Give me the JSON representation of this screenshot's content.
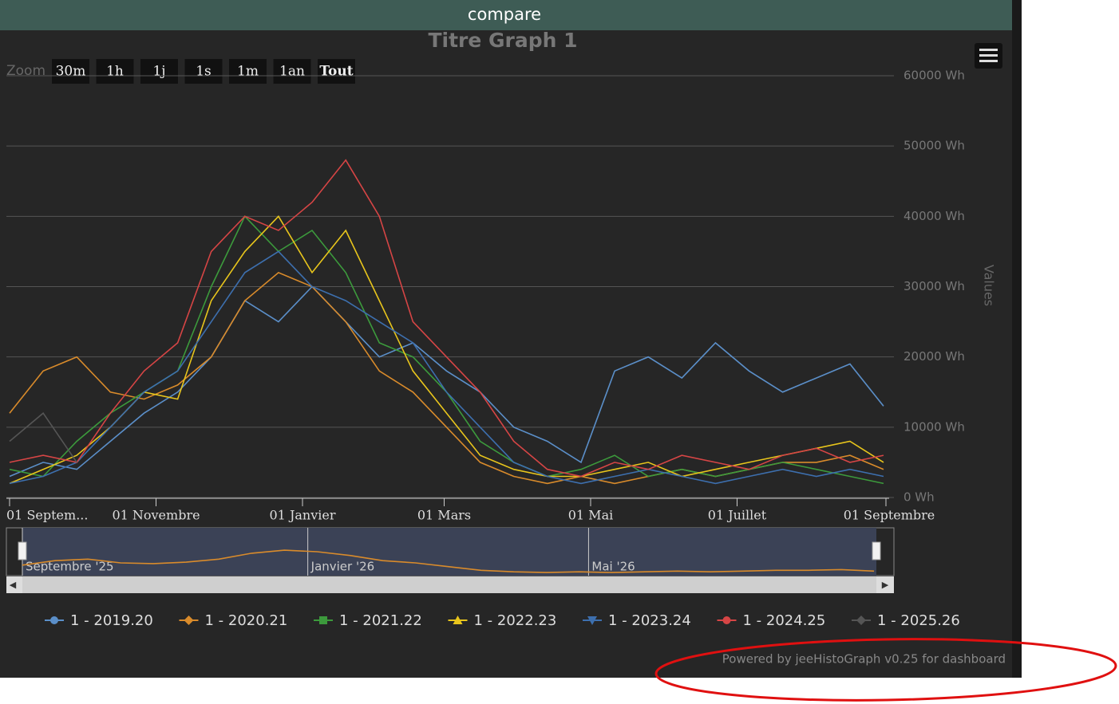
{
  "header": {
    "title": "compare"
  },
  "chart_data": {
    "type": "line",
    "title": "Titre Graph 1",
    "range_selector": {
      "label": "Zoom",
      "buttons": [
        "30m",
        "1h",
        "1j",
        "1s",
        "1m",
        "1an",
        "Tout"
      ],
      "selected": 6
    },
    "y_label": "Values",
    "x": [
      "2025-09-01",
      "2025-09-15",
      "2025-09-29",
      "2025-10-13",
      "2025-10-27",
      "2025-11-10",
      "2025-11-24",
      "2025-12-08",
      "2025-12-22",
      "2026-01-05",
      "2026-01-19",
      "2026-02-02",
      "2026-02-16",
      "2026-03-02",
      "2026-03-16",
      "2026-03-30",
      "2026-04-13",
      "2026-04-27",
      "2026-05-11",
      "2026-05-25",
      "2026-06-08",
      "2026-06-22",
      "2026-07-06",
      "2026-07-20",
      "2026-08-03",
      "2026-08-17",
      "2026-08-31"
    ],
    "xlim": [
      "2025-09-01",
      "2026-09-01"
    ],
    "xticks": [
      {
        "value": "2025-09-01",
        "label": "01 Septem..."
      },
      {
        "value": "2025-11-01",
        "label": "01 Novembre"
      },
      {
        "value": "2026-01-01",
        "label": "01 Janvier"
      },
      {
        "value": "2026-03-01",
        "label": "01 Mars"
      },
      {
        "value": "2026-05-01",
        "label": "01 Mai"
      },
      {
        "value": "2026-07-01",
        "label": "01 Juillet"
      },
      {
        "value": "2026-09-01",
        "label": "01 Septembre"
      }
    ],
    "ylim": [
      0,
      60000
    ],
    "yticks": [
      {
        "value": 0,
        "label": "0 Wh"
      },
      {
        "value": 10000,
        "label": "10000 Wh"
      },
      {
        "value": 20000,
        "label": "20000 Wh"
      },
      {
        "value": 30000,
        "label": "30000 Wh"
      },
      {
        "value": 40000,
        "label": "40000 Wh"
      },
      {
        "value": 50000,
        "label": "50000 Wh"
      },
      {
        "value": 60000,
        "label": "60000 Wh"
      }
    ],
    "grid": true,
    "series": [
      {
        "name": "1 - 2019.20",
        "color": "#5b8fc9",
        "marker": "circle",
        "values": [
          3000,
          5000,
          4000,
          8000,
          12000,
          15000,
          20000,
          28000,
          25000,
          30000,
          25000,
          20000,
          22000,
          18000,
          15000,
          10000,
          8000,
          5000,
          18000,
          20000,
          17000,
          22000,
          18000,
          15000,
          17000,
          19000,
          13000
        ]
      },
      {
        "name": "1 - 2020.21",
        "color": "#d98b2b",
        "marker": "diamond",
        "values": [
          12000,
          18000,
          20000,
          15000,
          14000,
          16000,
          20000,
          28000,
          32000,
          30000,
          25000,
          18000,
          15000,
          10000,
          5000,
          3000,
          2000,
          3000,
          2000,
          3000,
          4000,
          3000,
          4000,
          5000,
          5000,
          6000,
          4000
        ]
      },
      {
        "name": "1 - 2021.22",
        "color": "#3c9a3c",
        "marker": "square",
        "values": [
          4000,
          3000,
          8000,
          12000,
          15000,
          18000,
          30000,
          40000,
          35000,
          38000,
          32000,
          22000,
          20000,
          15000,
          8000,
          5000,
          3000,
          4000,
          6000,
          3000,
          4000,
          3000,
          4000,
          5000,
          4000,
          3000,
          2000
        ]
      },
      {
        "name": "1 - 2022.23",
        "color": "#e8c51c",
        "marker": "triangle",
        "values": [
          2000,
          4000,
          6000,
          10000,
          15000,
          14000,
          28000,
          35000,
          40000,
          32000,
          38000,
          28000,
          18000,
          12000,
          6000,
          4000,
          3000,
          3000,
          4000,
          5000,
          3000,
          4000,
          5000,
          6000,
          7000,
          8000,
          5000
        ]
      },
      {
        "name": "1 - 2023.24",
        "color": "#3d6fae",
        "marker": "triangle-down",
        "values": [
          2000,
          3000,
          5000,
          10000,
          15000,
          18000,
          25000,
          32000,
          35000,
          30000,
          28000,
          25000,
          22000,
          15000,
          10000,
          5000,
          3000,
          2000,
          3000,
          4000,
          3000,
          2000,
          3000,
          4000,
          3000,
          4000,
          3000
        ]
      },
      {
        "name": "1 - 2024.25",
        "color": "#d64545",
        "marker": "circle",
        "values": [
          5000,
          6000,
          5000,
          12000,
          18000,
          22000,
          35000,
          40000,
          38000,
          42000,
          48000,
          40000,
          25000,
          20000,
          15000,
          8000,
          4000,
          3000,
          5000,
          4000,
          6000,
          5000,
          4000,
          6000,
          7000,
          5000,
          6000
        ]
      },
      {
        "name": "1 - 2025.26",
        "color": "#555555",
        "marker": "diamond",
        "values": [
          8000,
          12000,
          5000,
          null,
          null,
          null,
          null,
          null,
          null,
          null,
          null,
          null,
          null,
          null,
          null,
          null,
          null,
          null,
          null,
          null,
          null,
          null,
          null,
          null,
          null,
          null,
          null
        ]
      }
    ],
    "navigator": {
      "series": 1,
      "labels": [
        {
          "value": "2025-09-01",
          "label": "Septembre '25"
        },
        {
          "value": "2026-01-01",
          "label": "Janvier '26"
        },
        {
          "value": "2026-05-01",
          "label": "Mai '26"
        }
      ]
    },
    "credits": "Powered by jeeHistoGraph v0.25 for dashboard"
  }
}
